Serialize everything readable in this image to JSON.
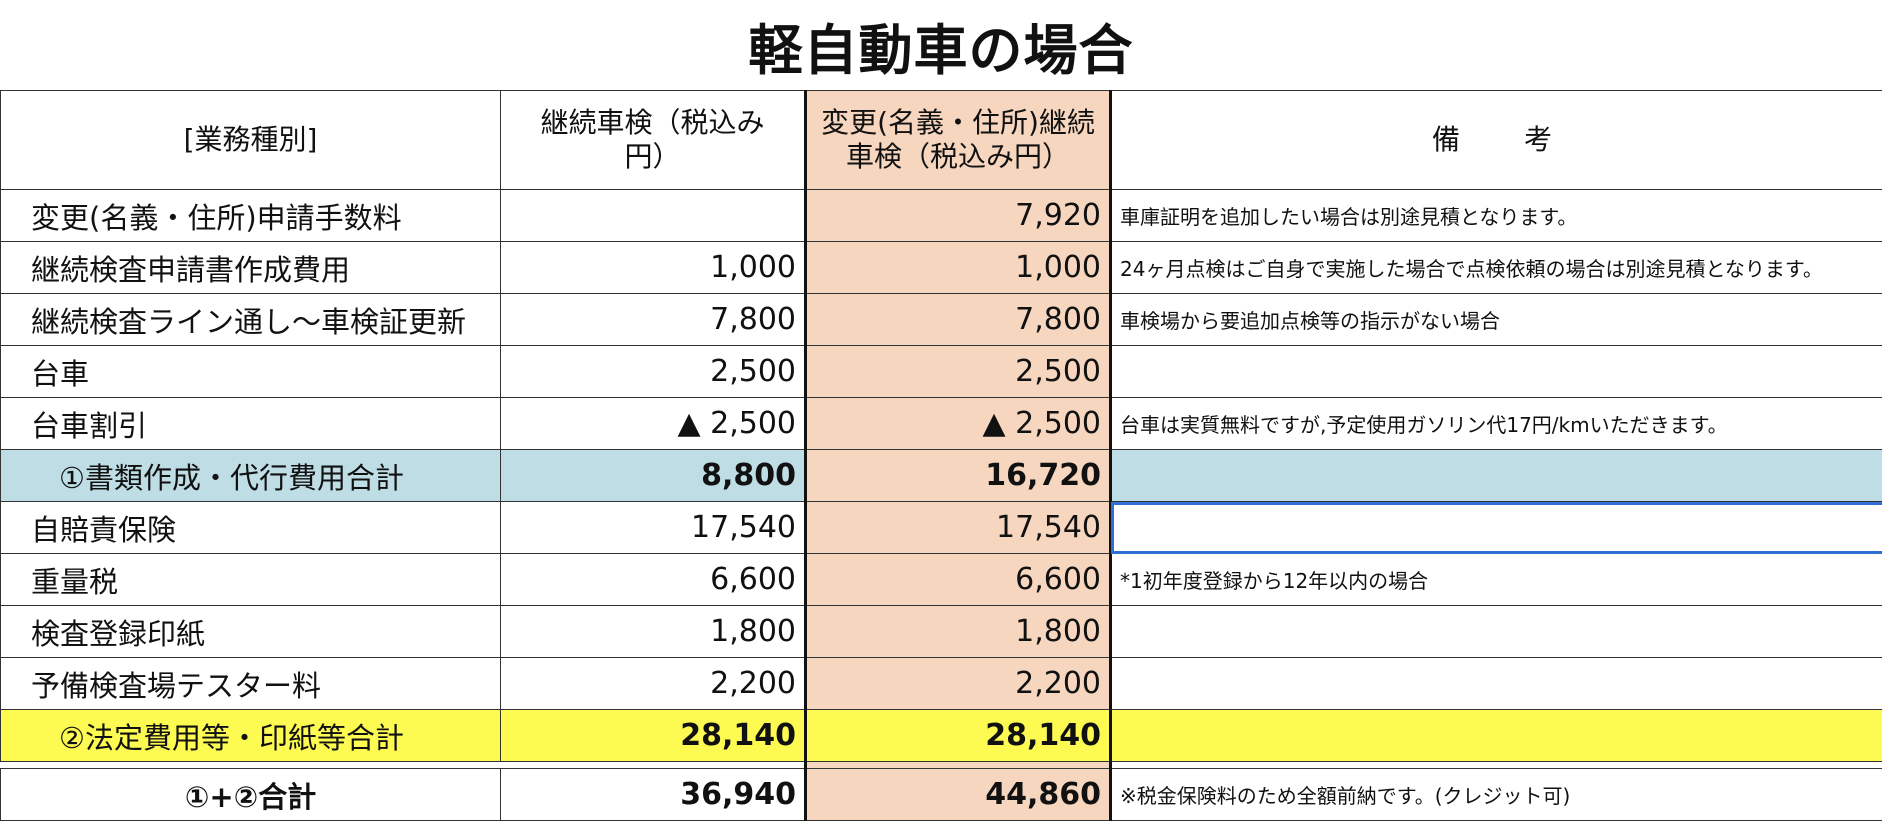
{
  "title": "軽自動車の場合",
  "headers": {
    "category": "[業務種別]",
    "continuous": "継続車検（税込み円）",
    "change": "変更(名義・住所)継続車検（税込み円）",
    "notes": "備　考"
  },
  "rows": [
    {
      "label": "変更(名義・住所)申請手数料",
      "continuous": "",
      "change": "7,920",
      "note": "車庫証明を追加したい場合は別途見積となります。"
    },
    {
      "label": "継続検査申請書作成費用",
      "continuous": "1,000",
      "change": "1,000",
      "note": "24ヶ月点検はご自身で実施した場合で点検依頼の場合は別途見積となります。"
    },
    {
      "label": "継続検査ライン通し〜車検証更新",
      "continuous": "7,800",
      "change": "7,800",
      "note": "車検場から要追加点検等の指示がない場合"
    },
    {
      "label": "台車",
      "continuous": "2,500",
      "change": "2,500",
      "note": ""
    },
    {
      "label": "台車割引",
      "continuous": "▲ 2,500",
      "change": "▲ 2,500",
      "note": "台車は実質無料ですが,予定使用ガソリン代17円/kmいただきます。"
    }
  ],
  "subtotal1": {
    "label": "①書類作成・代行費用合計",
    "continuous": "8,800",
    "change": "16,720",
    "note": ""
  },
  "rows2": [
    {
      "label": "自賠責保険",
      "continuous": "17,540",
      "change": "17,540",
      "note": ""
    },
    {
      "label": "重量税",
      "continuous": "6,600",
      "change": "6,600",
      "note": "*1初年度登録から12年以内の場合"
    },
    {
      "label": "検査登録印紙",
      "continuous": "1,800",
      "change": "1,800",
      "note": ""
    },
    {
      "label": "予備検査場テスター料",
      "continuous": "2,200",
      "change": "2,200",
      "note": ""
    }
  ],
  "subtotal2": {
    "label": "②法定費用等・印紙等合計",
    "continuous": "28,140",
    "change": "28,140",
    "note": ""
  },
  "total": {
    "label": "①+②合計",
    "continuous": "36,940",
    "change": "44,860",
    "note": "※税金保険料のため全額前納です。(クレジット可)"
  },
  "colors": {
    "orange_column": "#f7d6bf",
    "subtotal_blue": "#bfdde5",
    "subtotal_yellow": "#fdfb52",
    "selection": "#2f6fd6"
  }
}
